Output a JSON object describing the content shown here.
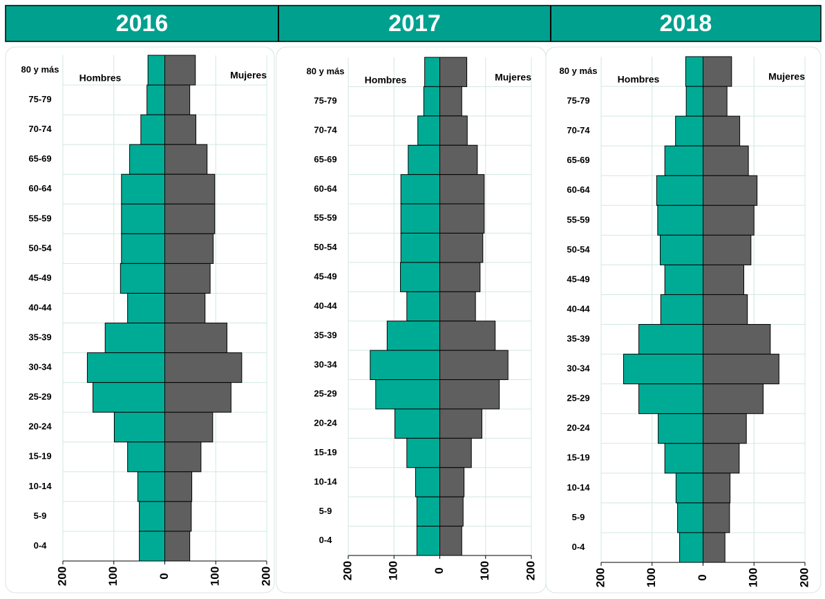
{
  "chart_data": [
    {
      "type": "pyramid",
      "title": "2016",
      "categories": [
        "80 y más",
        "75-79",
        "70-74",
        "65-69",
        "60-64",
        "55-59",
        "50-54",
        "45-49",
        "40-44",
        "35-39",
        "30-34",
        "25-29",
        "20-24",
        "15-19",
        "10-14",
        "5-9",
        "0-4"
      ],
      "series": [
        {
          "name": "Hombres",
          "color": "#00ab96",
          "values": [
            -33,
            -35,
            -47,
            -69,
            -85,
            -85,
            -85,
            -87,
            -73,
            -117,
            -152,
            -141,
            -99,
            -73,
            -53,
            -50,
            -50
          ]
        },
        {
          "name": "Mujeres",
          "color": "#5f5f5f",
          "values": [
            60,
            49,
            61,
            83,
            98,
            98,
            95,
            89,
            79,
            122,
            151,
            130,
            94,
            71,
            53,
            52,
            49
          ]
        }
      ],
      "xlim": [
        -200,
        200
      ],
      "xticks": [
        {
          "value": -200,
          "label": "200"
        },
        {
          "value": -100,
          "label": "100"
        },
        0,
        100,
        200
      ],
      "grid": true
    },
    {
      "type": "pyramid",
      "title": "2017",
      "categories": [
        "80 y más",
        "75-79",
        "70-74",
        "65-69",
        "60-64",
        "55-59",
        "50-54",
        "45-49",
        "40-44",
        "35-39",
        "30-34",
        "25-29",
        "20-24",
        "15-19",
        "10-14",
        "5-9",
        "0-4"
      ],
      "series": [
        {
          "name": "Hombres",
          "color": "#00ab96",
          "values": [
            -33,
            -35,
            -48,
            -69,
            -85,
            -85,
            -85,
            -86,
            -72,
            -115,
            -152,
            -140,
            -98,
            -72,
            -53,
            -50,
            -50
          ]
        },
        {
          "name": "Mujeres",
          "color": "#5f5f5f",
          "values": [
            59,
            48,
            60,
            82,
            97,
            97,
            94,
            88,
            78,
            121,
            149,
            130,
            92,
            69,
            53,
            51,
            48
          ]
        }
      ],
      "xlim": [
        -200,
        200
      ],
      "xticks": [
        {
          "value": -200,
          "label": "200"
        },
        {
          "value": -100,
          "label": "100"
        },
        0,
        100,
        200
      ],
      "grid": true
    },
    {
      "type": "pyramid",
      "title": "2018",
      "categories": [
        "80 y más",
        "75-79",
        "70-74",
        "65-69",
        "60-64",
        "55-59",
        "50-54",
        "45-49",
        "40-44",
        "35-39",
        "30-34",
        "25-29",
        "20-24",
        "15-19",
        "10-14",
        "5-9",
        "0-4"
      ],
      "series": [
        {
          "name": "Hombres",
          "color": "#00ab96",
          "values": [
            -34,
            -33,
            -54,
            -75,
            -91,
            -89,
            -84,
            -75,
            -83,
            -126,
            -156,
            -126,
            -88,
            -75,
            -53,
            -50,
            -46
          ]
        },
        {
          "name": "Mujeres",
          "color": "#5f5f5f",
          "values": [
            56,
            47,
            72,
            89,
            106,
            100,
            94,
            80,
            87,
            132,
            149,
            118,
            85,
            71,
            53,
            52,
            43
          ]
        }
      ],
      "xlim": [
        -200,
        200
      ],
      "xticks": [
        {
          "value": -200,
          "label": "200"
        },
        {
          "value": -100,
          "label": "100"
        },
        0,
        100,
        200
      ],
      "grid": true
    }
  ]
}
